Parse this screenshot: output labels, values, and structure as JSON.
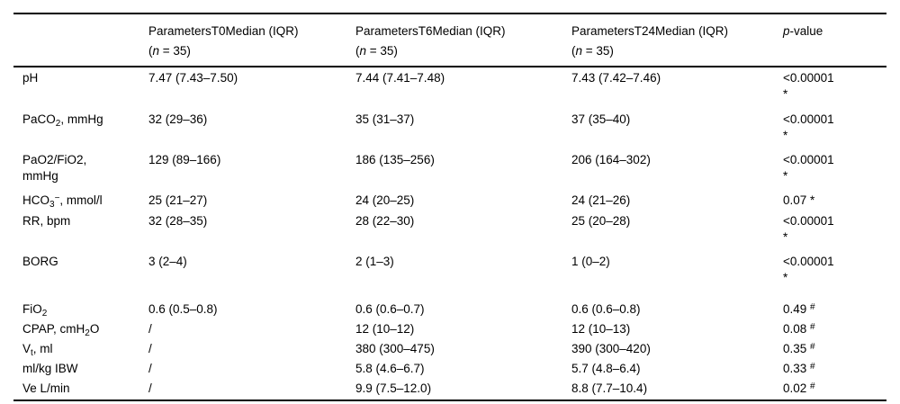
{
  "colors": {
    "text": "#000000",
    "background": "#ffffff",
    "rule": "#000000"
  },
  "table": {
    "columns": [
      {
        "label": ""
      },
      {
        "label": "ParametersT0Median (IQR)\n(~{n} = 35)"
      },
      {
        "label": "ParametersT6Median (IQR)\n(~{n} = 35)"
      },
      {
        "label": "ParametersT24Median (IQR)\n(~{n} = 35)"
      },
      {
        "label": "~{p}-value"
      }
    ],
    "rows": [
      {
        "param": "pH",
        "t0": "7.47 (7.43–7.50)",
        "t6": "7.44 (7.41–7.48)",
        "t24": "7.43 (7.42–7.46)",
        "p": "<0.00001\n*"
      },
      {
        "param": "PaCO_{2}, mmHg",
        "t0": "32 (29–36)",
        "t6": "35 (31–37)",
        "t24": "37 (35–40)",
        "p": "<0.00001\n*"
      },
      {
        "param": "PaO2/FiO2,\nmmHg",
        "t0": "129 (89–166)",
        "t6": "186 (135–256)",
        "t24": "206 (164–302)",
        "p": "<0.00001\n*"
      },
      {
        "param": "HCO_{3}^{−}, mmol/l",
        "t0": "25 (21–27)",
        "t6": "24 (20–25)",
        "t24": "24 (21–26)",
        "p": "0.07 *"
      },
      {
        "param": "RR, bpm",
        "t0": "32 (28–35)",
        "t6": "28 (22–30)",
        "t24": "25 (20–28)",
        "p": "<0.00001\n*"
      },
      {
        "param": "BORG",
        "t0": "3 (2–4)",
        "t6": "2 (1–3)",
        "t24": "1 (0–2)",
        "p": "<0.00001\n*"
      },
      {
        "param": "FiO_{2}",
        "t0": "0.6 (0.5–0.8)",
        "t6": "0.6 (0.6–0.7)",
        "t24": "0.6 (0.6–0.8)",
        "p": "0.49 ^{#}"
      },
      {
        "param": "CPAP, cmH_{2}O",
        "t0": "/",
        "t6": "12 (10–12)",
        "t24": "12 (10–13)",
        "p": "0.08 ^{#}"
      },
      {
        "param": "V_{t}, ml",
        "t0": "/",
        "t6": "380 (300–475)",
        "t24": "390 (300–420)",
        "p": "0.35 ^{#}"
      },
      {
        "param": "ml/kg IBW",
        "t0": "/",
        "t6": "5.8 (4.6–6.7)",
        "t24": "5.7 (4.8–6.4)",
        "p": "0.33 ^{#}"
      },
      {
        "param": "Ve L/min",
        "t0": "/",
        "t6": "9.9 (7.5–12.0)",
        "t24": "8.8 (7.7–10.4)",
        "p": "0.02 ^{#}"
      }
    ]
  }
}
